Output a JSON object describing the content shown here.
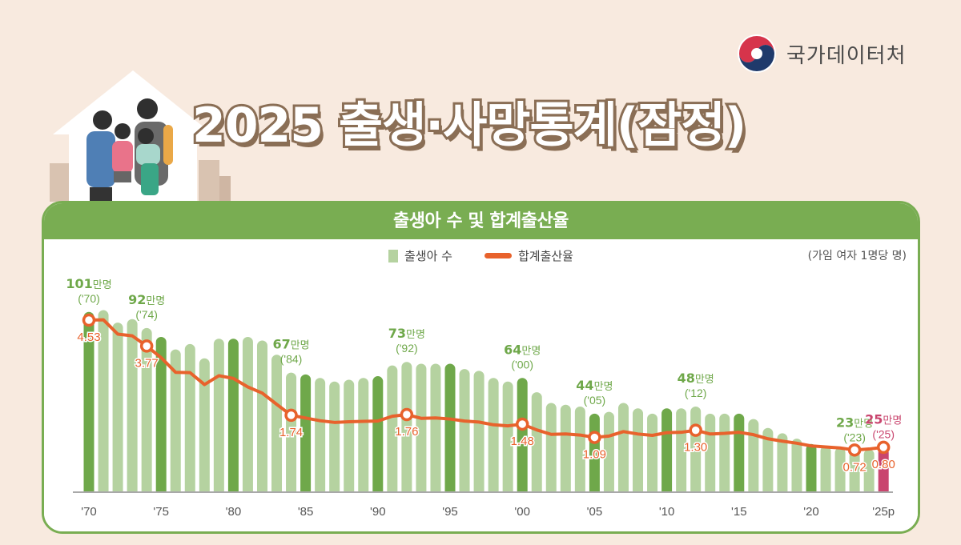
{
  "logo": {
    "org_name": "국가데이터처",
    "icon": "taegeuk-emblem-icon"
  },
  "title": "2025 출생·사망통계(잠정)",
  "illustration": "family-in-house",
  "card": {
    "header": "출생아 수 및 합계출산율",
    "legend": [
      {
        "label": "출생아 수",
        "type": "bar",
        "color": "#b5d2a0"
      },
      {
        "label": "합계출산율",
        "type": "line",
        "color": "#e8622c"
      }
    ],
    "unit_note": "(가임 여자 1명당 명)"
  },
  "colors": {
    "bar_light": "#b5d2a0",
    "bar_dark": "#6fa84a",
    "bar_highlight": "#c9456e",
    "line": "#e8622c",
    "label_green": "#6fa84a",
    "label_pink": "#c9456e",
    "header_green": "#79ad52",
    "background": "#f8eadf"
  },
  "chart_data": {
    "type": "bar+line",
    "title": "출생아 수 및 합계출산율",
    "x": [
      1970,
      1971,
      1972,
      1973,
      1974,
      1975,
      1976,
      1977,
      1978,
      1979,
      1980,
      1981,
      1982,
      1983,
      1984,
      1985,
      1986,
      1987,
      1988,
      1989,
      1990,
      1991,
      1992,
      1993,
      1994,
      1995,
      1996,
      1997,
      1998,
      1999,
      2000,
      2001,
      2002,
      2003,
      2004,
      2005,
      2006,
      2007,
      2008,
      2009,
      2010,
      2011,
      2012,
      2013,
      2014,
      2015,
      2016,
      2017,
      2018,
      2019,
      2020,
      2021,
      2022,
      2023,
      2024,
      2025
    ],
    "x_tick_labels": [
      "'70",
      "'75",
      "'80",
      "'85",
      "'90",
      "'95",
      "'00",
      "'05",
      "'10",
      "'15",
      "'20",
      "'25p"
    ],
    "series": [
      {
        "name": "출생아 수",
        "type": "bar",
        "unit": "만명",
        "values": [
          101,
          102,
          95,
          97,
          92,
          87,
          80,
          83,
          75,
          86,
          86,
          87,
          85,
          77,
          67,
          66,
          64,
          62,
          63,
          64,
          65,
          71,
          73,
          72,
          72,
          72,
          69,
          68,
          64,
          62,
          64,
          56,
          50,
          49,
          48,
          44,
          45,
          50,
          47,
          44,
          47,
          47,
          48,
          44,
          44,
          44,
          41,
          36,
          33,
          30,
          27,
          26,
          25,
          23,
          24,
          25
        ]
      },
      {
        "name": "합계출산율",
        "type": "line",
        "unit": "가임 여자 1명당 명",
        "values": [
          4.53,
          4.54,
          4.12,
          4.07,
          3.77,
          3.43,
          3.0,
          2.99,
          2.64,
          2.9,
          2.82,
          2.57,
          2.39,
          2.06,
          1.74,
          1.66,
          1.58,
          1.53,
          1.55,
          1.56,
          1.57,
          1.71,
          1.76,
          1.65,
          1.66,
          1.63,
          1.57,
          1.54,
          1.46,
          1.43,
          1.48,
          1.31,
          1.18,
          1.19,
          1.16,
          1.09,
          1.13,
          1.26,
          1.19,
          1.15,
          1.23,
          1.24,
          1.3,
          1.19,
          1.21,
          1.24,
          1.17,
          1.05,
          0.98,
          0.92,
          0.84,
          0.81,
          0.78,
          0.72,
          0.75,
          0.8
        ]
      }
    ],
    "annotations": [
      {
        "year": 1970,
        "births": "101",
        "unit": "만명",
        "tag": "('70)",
        "tfr": "4.53"
      },
      {
        "year": 1974,
        "births": "92",
        "unit": "만명",
        "tag": "('74)",
        "tfr": "3.77"
      },
      {
        "year": 1984,
        "births": "67",
        "unit": "만명",
        "tag": "('84)",
        "tfr": "1.74"
      },
      {
        "year": 1992,
        "births": "73",
        "unit": "만명",
        "tag": "('92)",
        "tfr": "1.76"
      },
      {
        "year": 2000,
        "births": "64",
        "unit": "만명",
        "tag": "('00)",
        "tfr": "1.48"
      },
      {
        "year": 2005,
        "births": "44",
        "unit": "만명",
        "tag": "('05)",
        "tfr": "1.09"
      },
      {
        "year": 2012,
        "births": "48",
        "unit": "만명",
        "tag": "('12)",
        "tfr": "1.30"
      },
      {
        "year": 2023,
        "births": "23",
        "unit": "만명",
        "tag": "('23)",
        "tfr": "0.72"
      },
      {
        "year": 2025,
        "births": "25",
        "unit": "만명",
        "tag": "('25)",
        "tfr": "0.80"
      }
    ],
    "dark_bar_years": [
      1970,
      1975,
      1980,
      1985,
      1990,
      1995,
      2000,
      2005,
      2010,
      2015,
      2020
    ],
    "highlight_year": 2025,
    "xlabel": "",
    "ylabel": "",
    "grid": false,
    "legend_position": "top-center"
  }
}
